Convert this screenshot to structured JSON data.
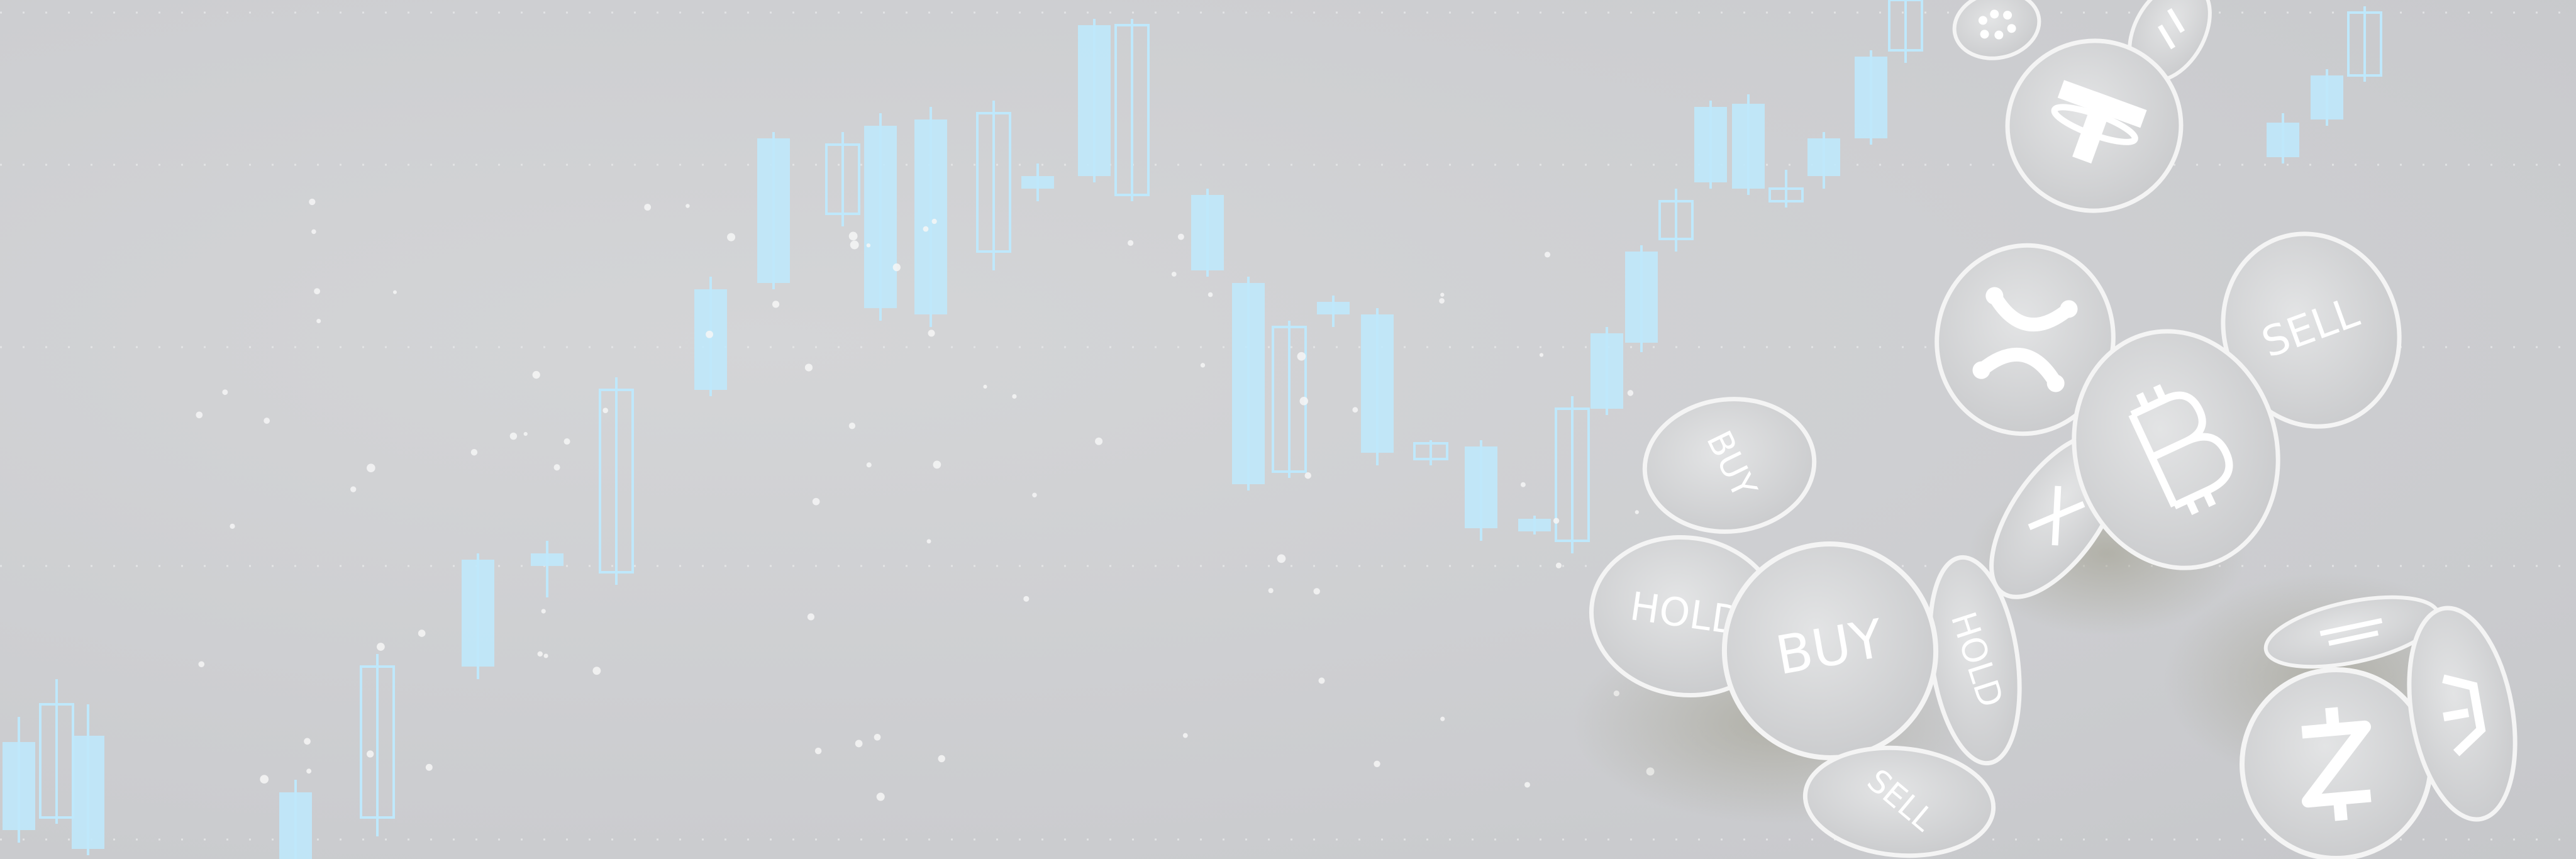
{
  "scene": {
    "background": "#cfd0d2",
    "candle_color": "#bfe8fb",
    "coin_face": "#d9dadb",
    "coin_edge": "#f4f4f4"
  },
  "coins": [
    {
      "name": "buy-coin-top",
      "text": "BUY"
    },
    {
      "name": "hold-coin-left",
      "text": "HOLD"
    },
    {
      "name": "buy-coin-center",
      "text": "BUY"
    },
    {
      "name": "hold-coin-right",
      "text": "HOLD"
    },
    {
      "name": "sell-coin-bottom",
      "text": "SELL"
    },
    {
      "name": "sell-coin-right",
      "text": "SELL"
    }
  ],
  "crypto_icons": [
    {
      "name": "tether-coin-icon"
    },
    {
      "name": "ripple-coin-icon"
    },
    {
      "name": "bitcoin-coin-icon"
    },
    {
      "name": "zcash-coin-icon"
    },
    {
      "name": "dash-coin-icon"
    },
    {
      "name": "cardano-coin-icon"
    }
  ]
}
